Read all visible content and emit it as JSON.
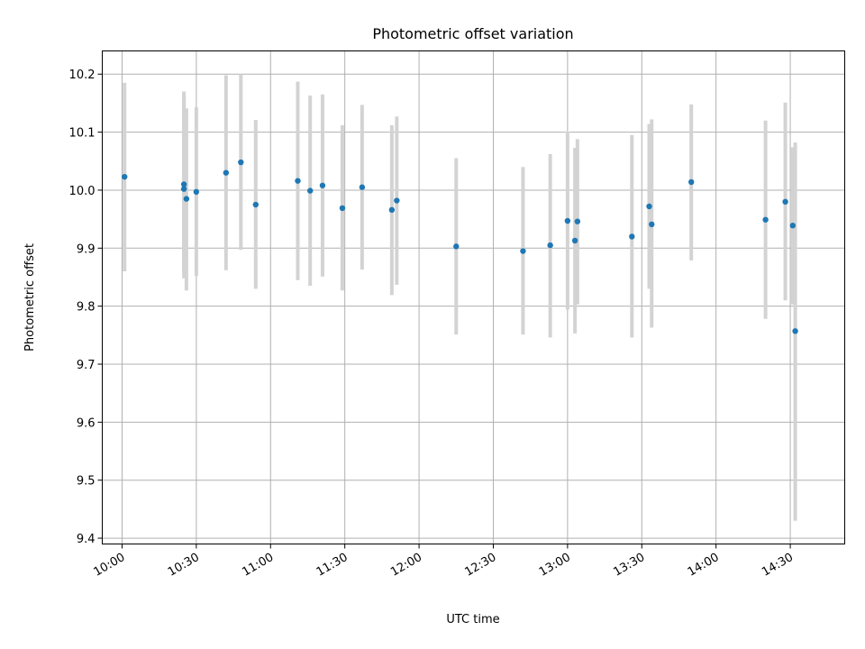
{
  "chart_data": {
    "type": "scatter",
    "title": "Photometric offset variation",
    "xlabel": "UTC time",
    "ylabel": "Photometric offset",
    "xlim": [
      "09:52",
      "14:52"
    ],
    "ylim": [
      9.39,
      10.24
    ],
    "x_ticks": [
      "10:00",
      "10:30",
      "11:00",
      "11:30",
      "12:00",
      "12:30",
      "13:00",
      "13:30",
      "14:00",
      "14:30"
    ],
    "y_ticks": [
      9.4,
      9.5,
      9.6,
      9.7,
      9.8,
      9.9,
      10.0,
      10.1,
      10.2
    ],
    "y_tick_labels": [
      "9.4",
      "9.5",
      "9.6",
      "9.7",
      "9.8",
      "9.9",
      "10.0",
      "10.1",
      "10.2"
    ],
    "grid": true,
    "point_color": "#1f77b4",
    "errorbar_color": "#d3d3d3",
    "points": [
      {
        "x": "10:01",
        "y": 10.023,
        "lo": 9.86,
        "hi": 10.185
      },
      {
        "x": "10:25",
        "y": 10.01,
        "lo": 9.848,
        "hi": 10.17
      },
      {
        "x": "10:25",
        "y": 10.002,
        "lo": 9.86,
        "hi": 10.16
      },
      {
        "x": "10:26",
        "y": 9.985,
        "lo": 9.827,
        "hi": 10.141
      },
      {
        "x": "10:30",
        "y": 9.997,
        "lo": 9.852,
        "hi": 10.143
      },
      {
        "x": "10:42",
        "y": 10.03,
        "lo": 9.862,
        "hi": 10.198
      },
      {
        "x": "10:48",
        "y": 10.048,
        "lo": 9.897,
        "hi": 10.2
      },
      {
        "x": "10:54",
        "y": 9.975,
        "lo": 9.83,
        "hi": 10.121
      },
      {
        "x": "11:11",
        "y": 10.016,
        "lo": 9.845,
        "hi": 10.187
      },
      {
        "x": "11:16",
        "y": 9.999,
        "lo": 9.835,
        "hi": 10.163
      },
      {
        "x": "11:21",
        "y": 10.008,
        "lo": 9.851,
        "hi": 10.165
      },
      {
        "x": "11:29",
        "y": 9.969,
        "lo": 9.827,
        "hi": 10.112
      },
      {
        "x": "11:37",
        "y": 10.005,
        "lo": 9.863,
        "hi": 10.147
      },
      {
        "x": "11:49",
        "y": 9.966,
        "lo": 9.819,
        "hi": 10.112
      },
      {
        "x": "11:51",
        "y": 9.982,
        "lo": 9.837,
        "hi": 10.127
      },
      {
        "x": "12:15",
        "y": 9.903,
        "lo": 9.751,
        "hi": 10.055
      },
      {
        "x": "12:42",
        "y": 9.895,
        "lo": 9.751,
        "hi": 10.04
      },
      {
        "x": "12:53",
        "y": 9.905,
        "lo": 9.746,
        "hi": 10.062
      },
      {
        "x": "13:00",
        "y": 9.947,
        "lo": 9.794,
        "hi": 10.101
      },
      {
        "x": "13:03",
        "y": 9.913,
        "lo": 9.753,
        "hi": 10.073
      },
      {
        "x": "13:04",
        "y": 9.946,
        "lo": 9.803,
        "hi": 10.088
      },
      {
        "x": "13:26",
        "y": 9.92,
        "lo": 9.746,
        "hi": 10.095
      },
      {
        "x": "13:33",
        "y": 9.972,
        "lo": 9.83,
        "hi": 10.114
      },
      {
        "x": "13:34",
        "y": 9.941,
        "lo": 9.763,
        "hi": 10.122
      },
      {
        "x": "13:50",
        "y": 10.014,
        "lo": 9.879,
        "hi": 10.148
      },
      {
        "x": "14:20",
        "y": 9.949,
        "lo": 9.778,
        "hi": 10.12
      },
      {
        "x": "14:28",
        "y": 9.98,
        "lo": 9.81,
        "hi": 10.151
      },
      {
        "x": "14:31",
        "y": 9.939,
        "lo": 9.803,
        "hi": 10.074
      },
      {
        "x": "14:32",
        "y": 9.757,
        "lo": 9.43,
        "hi": 10.082
      }
    ]
  }
}
